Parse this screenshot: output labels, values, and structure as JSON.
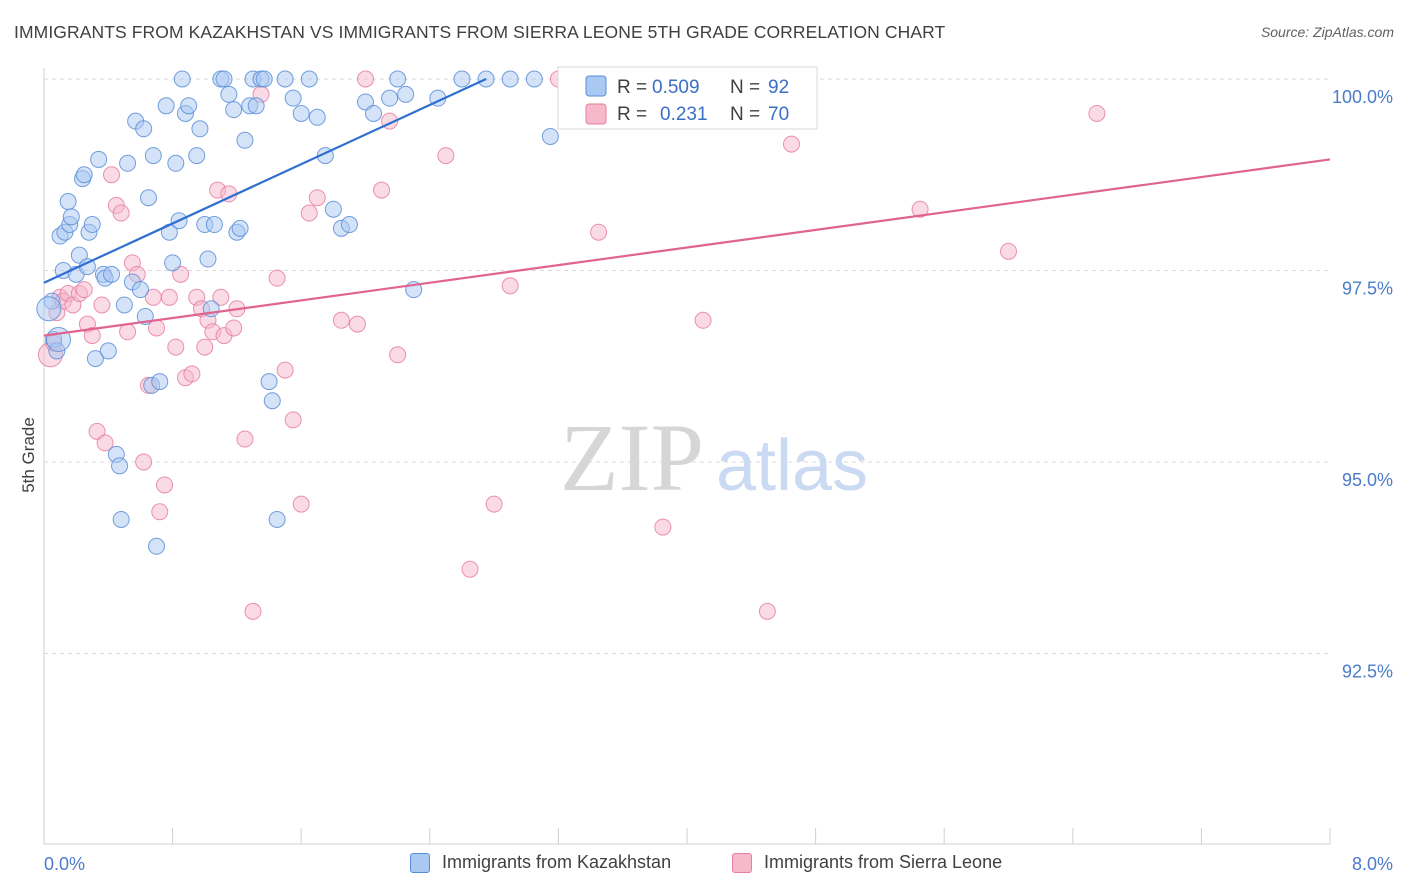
{
  "title": "IMMIGRANTS FROM KAZAKHSTAN VS IMMIGRANTS FROM SIERRA LEONE 5TH GRADE CORRELATION CHART",
  "source": "Source: ZipAtlas.com",
  "watermark": {
    "zip": "ZIP",
    "atlas": "atlas"
  },
  "colors": {
    "blue_fill": "#a9c8f2",
    "blue_stroke": "#5b8ed8",
    "blue_line": "#2e6fd0",
    "pink_fill": "#f6b8cb",
    "pink_stroke": "#e77fa0",
    "pink_line": "#e0648e",
    "axis_label": "#4a7cc9",
    "grid": "#d9d9d9"
  },
  "legend_stats": [
    {
      "r_label": "R =",
      "r_value": "0.509",
      "n_label": "N =",
      "n_value": "92"
    },
    {
      "r_label": "R =",
      "r_value": "0.231",
      "n_label": "N =",
      "n_value": "70"
    }
  ],
  "chart_data": {
    "type": "scatter",
    "title": "IMMIGRANTS FROM KAZAKHSTAN VS IMMIGRANTS FROM SIERRA LEONE 5TH GRADE CORRELATION CHART",
    "xlabel": "",
    "ylabel": "5th Grade",
    "xlim": [
      0,
      8
    ],
    "ylim": [
      90.0,
      100.4
    ],
    "x_ticks": [
      "0.0%",
      "8.0%"
    ],
    "y_ticks": [
      {
        "value": 100.0,
        "label": "100.0%"
      },
      {
        "value": 97.5,
        "label": "97.5%"
      },
      {
        "value": 95.0,
        "label": "95.0%"
      },
      {
        "value": 92.5,
        "label": "92.5%"
      }
    ],
    "grid": true,
    "legend_placement": "bottom",
    "series": [
      {
        "name": "Immigrants from Kazakhstan",
        "color": "blue",
        "r": 0.509,
        "n": 92,
        "trend": {
          "x": [
            0.0,
            2.75
          ],
          "y": [
            97.34,
            100.0
          ]
        },
        "points": [
          [
            0.05,
            97.1
          ],
          [
            0.06,
            96.6
          ],
          [
            0.08,
            96.45
          ],
          [
            0.1,
            97.95
          ],
          [
            0.12,
            97.5
          ],
          [
            0.13,
            98.0
          ],
          [
            0.15,
            98.4
          ],
          [
            0.16,
            98.1
          ],
          [
            0.17,
            98.2
          ],
          [
            0.2,
            97.45
          ],
          [
            0.22,
            97.7
          ],
          [
            0.24,
            98.7
          ],
          [
            0.25,
            98.75
          ],
          [
            0.27,
            97.55
          ],
          [
            0.28,
            98.0
          ],
          [
            0.3,
            98.1
          ],
          [
            0.32,
            96.35
          ],
          [
            0.34,
            98.95
          ],
          [
            0.37,
            97.45
          ],
          [
            0.38,
            97.4
          ],
          [
            0.4,
            96.45
          ],
          [
            0.42,
            97.45
          ],
          [
            0.45,
            95.1
          ],
          [
            0.47,
            94.95
          ],
          [
            0.48,
            94.25
          ],
          [
            0.5,
            97.05
          ],
          [
            0.52,
            98.9
          ],
          [
            0.55,
            97.35
          ],
          [
            0.57,
            99.45
          ],
          [
            0.6,
            97.25
          ],
          [
            0.62,
            99.35
          ],
          [
            0.63,
            96.9
          ],
          [
            0.65,
            98.45
          ],
          [
            0.67,
            96.0
          ],
          [
            0.68,
            99.0
          ],
          [
            0.7,
            93.9
          ],
          [
            0.72,
            96.05
          ],
          [
            0.76,
            99.65
          ],
          [
            0.78,
            98.0
          ],
          [
            0.8,
            97.6
          ],
          [
            0.82,
            98.9
          ],
          [
            0.84,
            98.15
          ],
          [
            0.86,
            100.0
          ],
          [
            0.88,
            99.55
          ],
          [
            0.9,
            99.65
          ],
          [
            0.95,
            99.0
          ],
          [
            0.97,
            99.35
          ],
          [
            1.0,
            98.1
          ],
          [
            1.02,
            97.65
          ],
          [
            1.04,
            97.0
          ],
          [
            1.06,
            98.1
          ],
          [
            1.1,
            100.0
          ],
          [
            1.12,
            100.0
          ],
          [
            1.15,
            99.8
          ],
          [
            1.18,
            99.6
          ],
          [
            1.2,
            98.0
          ],
          [
            1.22,
            98.05
          ],
          [
            1.25,
            99.2
          ],
          [
            1.28,
            99.65
          ],
          [
            1.3,
            100.0
          ],
          [
            1.32,
            99.65
          ],
          [
            1.35,
            100.0
          ],
          [
            1.37,
            100.0
          ],
          [
            1.4,
            96.05
          ],
          [
            1.42,
            95.8
          ],
          [
            1.45,
            94.25
          ],
          [
            1.5,
            100.0
          ],
          [
            1.55,
            99.75
          ],
          [
            1.6,
            99.55
          ],
          [
            1.65,
            100.0
          ],
          [
            1.7,
            99.5
          ],
          [
            1.75,
            99.0
          ],
          [
            1.8,
            98.3
          ],
          [
            1.85,
            98.05
          ],
          [
            1.9,
            98.1
          ],
          [
            2.0,
            99.7
          ],
          [
            2.05,
            99.55
          ],
          [
            2.15,
            99.75
          ],
          [
            2.2,
            100.0
          ],
          [
            2.25,
            99.8
          ],
          [
            2.3,
            97.25
          ],
          [
            2.45,
            99.75
          ],
          [
            2.6,
            100.0
          ],
          [
            2.75,
            100.0
          ],
          [
            2.9,
            100.0
          ],
          [
            3.05,
            100.0
          ],
          [
            3.15,
            99.25
          ],
          [
            3.35,
            100.0
          ],
          [
            3.5,
            100.0
          ],
          [
            3.6,
            100.0
          ],
          [
            0.03,
            97.0
          ],
          [
            0.09,
            96.6
          ]
        ]
      },
      {
        "name": "Immigrants from Sierra Leone",
        "color": "pink",
        "r": 0.231,
        "n": 70,
        "trend": {
          "x": [
            0.0,
            8.0
          ],
          "y": [
            96.65,
            98.95
          ]
        },
        "points": [
          [
            0.04,
            96.4
          ],
          [
            0.06,
            96.55
          ],
          [
            0.08,
            96.95
          ],
          [
            0.1,
            97.15
          ],
          [
            0.12,
            97.1
          ],
          [
            0.15,
            97.2
          ],
          [
            0.18,
            97.05
          ],
          [
            0.22,
            97.2
          ],
          [
            0.25,
            97.25
          ],
          [
            0.27,
            96.8
          ],
          [
            0.3,
            96.65
          ],
          [
            0.33,
            95.4
          ],
          [
            0.36,
            97.05
          ],
          [
            0.38,
            95.25
          ],
          [
            0.42,
            98.75
          ],
          [
            0.45,
            98.35
          ],
          [
            0.48,
            98.25
          ],
          [
            0.52,
            96.7
          ],
          [
            0.55,
            97.6
          ],
          [
            0.58,
            97.45
          ],
          [
            0.62,
            95.0
          ],
          [
            0.65,
            96.0
          ],
          [
            0.68,
            97.15
          ],
          [
            0.7,
            96.75
          ],
          [
            0.72,
            94.35
          ],
          [
            0.75,
            94.7
          ],
          [
            0.78,
            97.15
          ],
          [
            0.82,
            96.5
          ],
          [
            0.85,
            97.45
          ],
          [
            0.88,
            96.1
          ],
          [
            0.92,
            96.15
          ],
          [
            0.95,
            97.15
          ],
          [
            0.98,
            97.0
          ],
          [
            1.0,
            96.5
          ],
          [
            1.02,
            96.85
          ],
          [
            1.05,
            96.7
          ],
          [
            1.08,
            98.55
          ],
          [
            1.1,
            97.15
          ],
          [
            1.12,
            96.65
          ],
          [
            1.15,
            98.5
          ],
          [
            1.18,
            96.75
          ],
          [
            1.2,
            97.0
          ],
          [
            1.25,
            95.3
          ],
          [
            1.3,
            93.05
          ],
          [
            1.35,
            99.8
          ],
          [
            1.45,
            97.4
          ],
          [
            1.5,
            96.2
          ],
          [
            1.55,
            95.55
          ],
          [
            1.6,
            94.45
          ],
          [
            1.65,
            98.25
          ],
          [
            1.7,
            98.45
          ],
          [
            1.85,
            96.85
          ],
          [
            1.95,
            96.8
          ],
          [
            2.0,
            100.0
          ],
          [
            2.1,
            98.55
          ],
          [
            2.15,
            99.45
          ],
          [
            2.2,
            96.4
          ],
          [
            2.5,
            99.0
          ],
          [
            2.65,
            93.6
          ],
          [
            2.8,
            94.45
          ],
          [
            2.9,
            97.3
          ],
          [
            3.2,
            100.0
          ],
          [
            3.45,
            98.0
          ],
          [
            3.85,
            94.15
          ],
          [
            4.1,
            96.85
          ],
          [
            4.5,
            93.05
          ],
          [
            4.65,
            99.15
          ],
          [
            5.45,
            98.3
          ],
          [
            6.0,
            97.75
          ],
          [
            6.55,
            99.55
          ]
        ]
      }
    ]
  }
}
